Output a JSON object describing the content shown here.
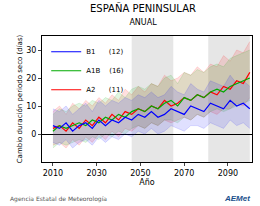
{
  "chart_data": {
    "type": "line",
    "title": "ESPAÑA PENINSULAR",
    "subtitle": "ANUAL",
    "x_label": "Año",
    "y_label": "Cambio duración periodo seco (días)",
    "annotations": [
      "Agencia Estatal de Meteorología",
      "AEMet"
    ],
    "x": [
      2010,
      2013,
      2016,
      2019,
      2022,
      2025,
      2028,
      2031,
      2034,
      2037,
      2040,
      2043,
      2046,
      2049,
      2052,
      2055,
      2058,
      2061,
      2064,
      2067,
      2070,
      2073,
      2076,
      2079,
      2082,
      2085,
      2088,
      2091,
      2094,
      2097,
      2100
    ],
    "series": [
      {
        "name": "A2      (11)",
        "color": "#ff0000",
        "values": [
          2,
          3,
          1,
          4,
          2,
          5,
          3,
          6,
          4,
          7,
          5,
          8,
          7,
          9,
          8,
          10,
          9,
          12,
          10,
          11,
          13,
          12,
          14,
          13,
          15,
          14,
          17,
          16,
          19,
          18,
          22
        ],
        "lower": [
          -4,
          -3,
          -5,
          -2,
          -4,
          -1,
          -3,
          0,
          -2,
          1,
          -1,
          2,
          1,
          3,
          2,
          4,
          3,
          5,
          4,
          5,
          6,
          5,
          7,
          6,
          8,
          7,
          9,
          9,
          11,
          10,
          13
        ],
        "upper": [
          8,
          10,
          7,
          11,
          9,
          12,
          10,
          13,
          11,
          14,
          12,
          16,
          14,
          17,
          15,
          18,
          17,
          21,
          19,
          20,
          22,
          21,
          24,
          22,
          25,
          24,
          28,
          26,
          30,
          29,
          33
        ]
      },
      {
        "name": "A1B    (16)",
        "color": "#00aa00",
        "values": [
          1,
          3,
          2,
          3,
          4,
          3,
          5,
          4,
          6,
          5,
          7,
          6,
          8,
          9,
          8,
          10,
          9,
          11,
          12,
          10,
          13,
          12,
          14,
          13,
          15,
          16,
          15,
          17,
          18,
          19,
          20
        ],
        "lower": [
          -5,
          -3,
          -4,
          -3,
          -2,
          -3,
          -1,
          -2,
          0,
          -1,
          1,
          0,
          2,
          3,
          2,
          4,
          3,
          5,
          5,
          4,
          6,
          5,
          7,
          6,
          8,
          9,
          8,
          9,
          10,
          11,
          12
        ],
        "upper": [
          7,
          9,
          8,
          10,
          11,
          10,
          12,
          11,
          13,
          12,
          15,
          13,
          16,
          17,
          16,
          18,
          17,
          20,
          21,
          18,
          22,
          21,
          23,
          22,
          24,
          25,
          24,
          27,
          28,
          29,
          30
        ]
      },
      {
        "name": "B1      (12)",
        "color": "#0000ff",
        "values": [
          3,
          2,
          4,
          1,
          3,
          4,
          2,
          5,
          3,
          5,
          4,
          6,
          5,
          7,
          6,
          8,
          6,
          7,
          9,
          8,
          7,
          10,
          9,
          8,
          11,
          10,
          9,
          12,
          10,
          11,
          9
        ],
        "lower": [
          -3,
          -4,
          -2,
          -5,
          -3,
          -2,
          -4,
          -1,
          -3,
          -1,
          -2,
          0,
          -1,
          1,
          0,
          2,
          0,
          1,
          3,
          2,
          1,
          3,
          3,
          2,
          4,
          3,
          2,
          5,
          3,
          4,
          2
        ],
        "upper": [
          9,
          8,
          10,
          7,
          9,
          11,
          8,
          12,
          10,
          12,
          11,
          13,
          12,
          14,
          13,
          15,
          13,
          14,
          17,
          15,
          14,
          18,
          16,
          15,
          19,
          18,
          17,
          21,
          18,
          19,
          17
        ]
      }
    ],
    "periods": [
      [
        2046,
        2065
      ],
      [
        2081,
        2100
      ]
    ],
    "xlim": [
      2005,
      2101
    ],
    "xticks": [
      2010,
      2030,
      2050,
      2070,
      2090
    ],
    "ylim": [
      -10,
      35
    ],
    "yticks": [
      0,
      10,
      20,
      30
    ],
    "grid": false,
    "legend": "upper left"
  }
}
